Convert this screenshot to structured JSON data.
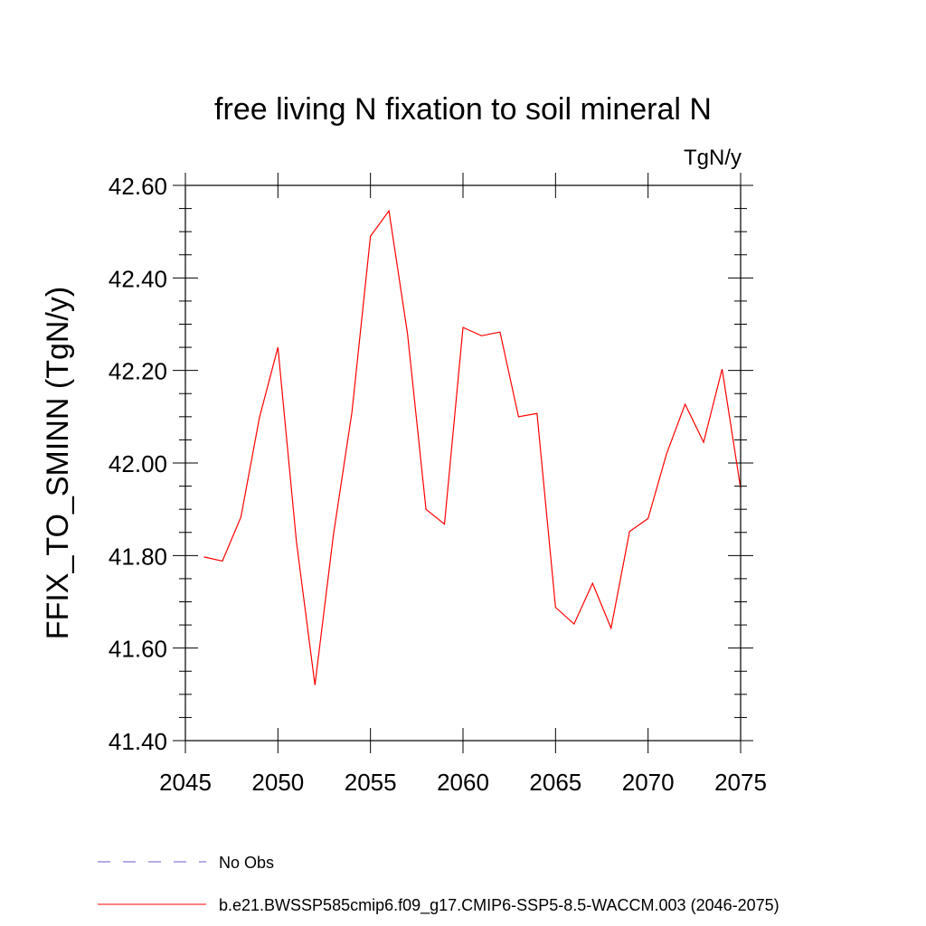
{
  "chart_data": {
    "type": "line",
    "title": "free living N fixation to soil mineral N",
    "units": "TgN/y",
    "ylabel": "FFIX_TO_SMINN  (TgN/y)",
    "xlabel": "",
    "xlim": [
      2045,
      2075
    ],
    "ylim": [
      41.4,
      42.6
    ],
    "x_ticks": [
      2045,
      2050,
      2055,
      2060,
      2065,
      2070,
      2075
    ],
    "x_tick_labels": [
      "2045",
      "2050",
      "2055",
      "2060",
      "2065",
      "2070",
      "2075"
    ],
    "y_ticks": [
      41.4,
      41.6,
      41.8,
      42.0,
      42.2,
      42.4,
      42.6
    ],
    "y_tick_labels": [
      "41.40",
      "41.60",
      "41.80",
      "42.00",
      "42.20",
      "42.40",
      "42.60"
    ],
    "grid": false,
    "legend_position": "bottom",
    "series": [
      {
        "name": "No Obs",
        "color": "#6a5acd",
        "dash": "dashed",
        "x": [],
        "y": []
      },
      {
        "name": "b.e21.BWSSP585cmip6.f09_g17.CMIP6-SSP5-8.5-WACCM.003 (2046-2075)",
        "color": "#ff0000",
        "dash": "solid",
        "x": [
          2046,
          2047,
          2048,
          2049,
          2050,
          2051,
          2052,
          2053,
          2054,
          2055,
          2056,
          2057,
          2058,
          2059,
          2060,
          2061,
          2062,
          2063,
          2064,
          2065,
          2066,
          2067,
          2068,
          2069,
          2070,
          2071,
          2072,
          2073,
          2074,
          2075
        ],
        "y": [
          41.797,
          41.788,
          41.883,
          42.098,
          42.25,
          41.83,
          41.52,
          41.845,
          42.11,
          42.49,
          42.545,
          42.28,
          41.9,
          41.868,
          42.293,
          42.275,
          42.283,
          42.1,
          42.107,
          41.688,
          41.652,
          41.74,
          41.643,
          41.852,
          41.88,
          42.02,
          42.127,
          42.045,
          42.203,
          41.945
        ]
      }
    ]
  }
}
